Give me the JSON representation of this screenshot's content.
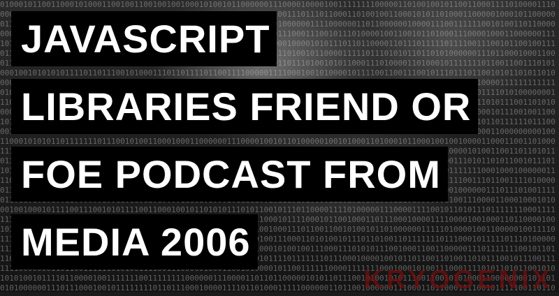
{
  "title_lines": [
    "JAVASCRIPT",
    "LIBRARIES FRIEND OR",
    "FOE PODCAST FROM",
    "MEDIA 2006"
  ],
  "watermark": "KRYOGENIX",
  "colors": {
    "title_bg": "#000000",
    "title_text": "#ffffff",
    "watermark": "#8a1414"
  }
}
